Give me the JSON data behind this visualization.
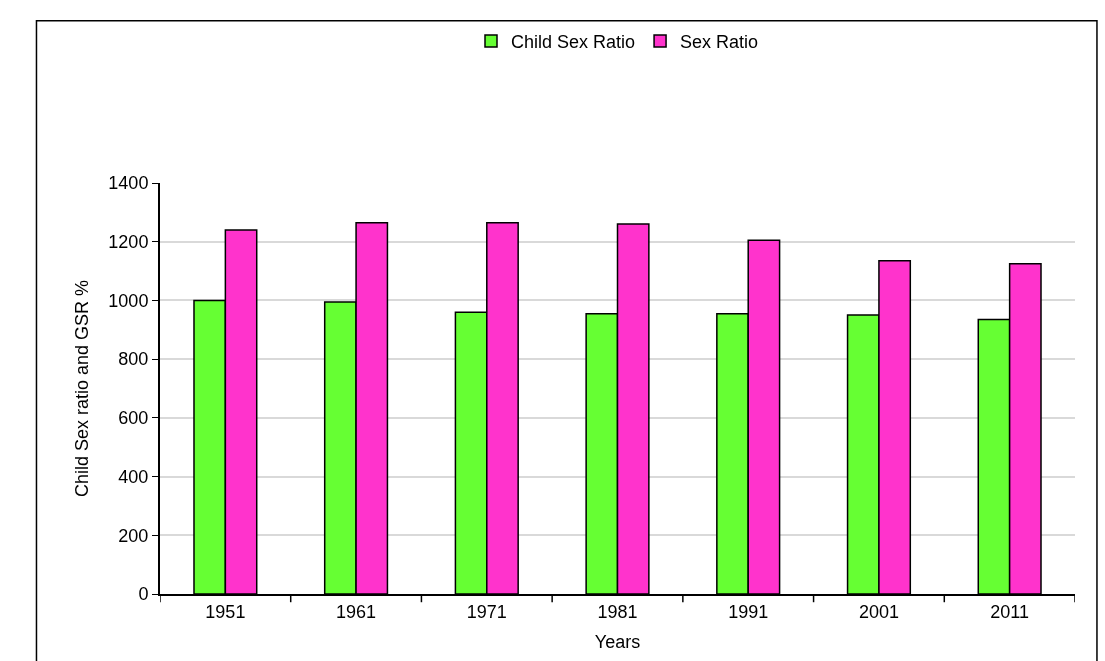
{
  "chart_data": {
    "type": "bar",
    "xlabel": "Years",
    "ylabel": "Child Sex ratio and GSR %",
    "categories": [
      "1951",
      "1961",
      "1971",
      "1981",
      "1991",
      "2001",
      "2011"
    ],
    "series": [
      {
        "name": "Child Sex Ratio",
        "color": "#66ff33",
        "values": [
          1000,
          995,
          960,
          955,
          955,
          950,
          935
        ]
      },
      {
        "name": "Sex Ratio",
        "color": "#ff33cc",
        "values": [
          1240,
          1265,
          1265,
          1260,
          1205,
          1135,
          1125
        ]
      }
    ],
    "ylim": [
      0,
      1400
    ],
    "yticks": [
      0,
      200,
      400,
      600,
      800,
      1000,
      1200,
      1400
    ],
    "grid": "y",
    "legend": "top"
  }
}
